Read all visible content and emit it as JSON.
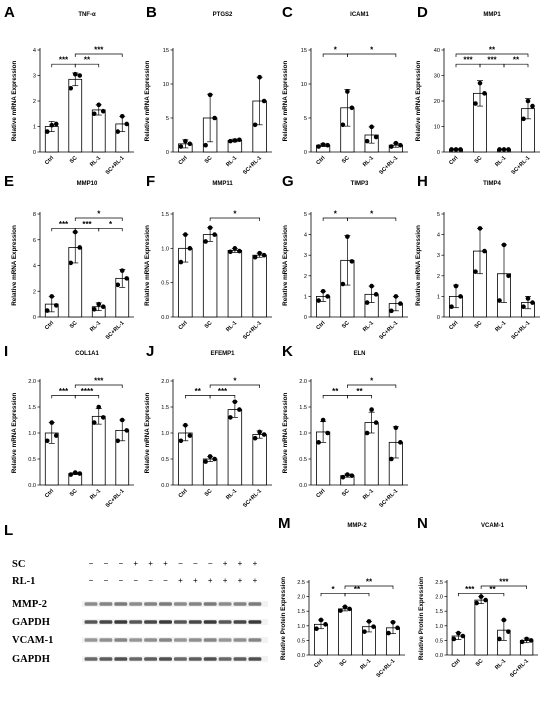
{
  "chart_data": [
    {
      "panel": "A",
      "type": "bar",
      "title": "TNF-α",
      "ylabel": "Relative mRNA Expression",
      "categories": [
        "Ctrl",
        "SC",
        "RL-1",
        "SC+RL-1"
      ],
      "values": [
        1.0,
        2.85,
        1.65,
        1.1
      ],
      "errors": [
        0.2,
        0.25,
        0.2,
        0.3
      ],
      "points": [
        [
          0.8,
          1.05,
          1.1
        ],
        [
          2.5,
          3.05,
          3.0
        ],
        [
          1.5,
          1.85,
          1.6
        ],
        [
          0.8,
          1.4,
          1.1
        ]
      ],
      "ylim": [
        0,
        4
      ],
      "yticks": [
        0,
        1,
        2,
        3,
        4
      ],
      "ytick_labels": [
        "0",
        "1",
        "2",
        "3",
        "4"
      ],
      "sig": [
        {
          "from": 0,
          "to": 1,
          "label": "***",
          "row": 0
        },
        {
          "from": 1,
          "to": 2,
          "label": "**",
          "row": 0
        },
        {
          "from": 1,
          "to": 3,
          "label": "***",
          "row": 1
        }
      ]
    },
    {
      "panel": "B",
      "type": "bar",
      "title": "PTGS2",
      "ylabel": "Relative mRNA Expression",
      "categories": [
        "Ctrl",
        "SC",
        "RL-1",
        "SC+RL-1"
      ],
      "values": [
        1.2,
        5.0,
        1.7,
        7.5
      ],
      "errors": [
        0.6,
        3.5,
        0.2,
        3.5
      ],
      "points": [
        [
          0.8,
          1.6,
          1.2
        ],
        [
          1.0,
          8.4,
          5.0
        ],
        [
          1.6,
          1.7,
          1.8
        ],
        [
          4.0,
          11.0,
          7.5
        ]
      ],
      "ylim": [
        0,
        15
      ],
      "yticks": [
        0,
        5,
        10,
        15
      ],
      "ytick_labels": [
        "0",
        "5",
        "10",
        "15"
      ],
      "sig": []
    },
    {
      "panel": "C",
      "type": "bar",
      "title": "ICAM1",
      "ylabel": "Relative mRNA Expression",
      "categories": [
        "Ctrl",
        "SC",
        "RL-1",
        "SC+RL-1"
      ],
      "values": [
        1.0,
        6.5,
        2.5,
        1.0
      ],
      "errors": [
        0.2,
        2.7,
        1.2,
        0.3
      ],
      "points": [
        [
          0.8,
          1.1,
          1.0
        ],
        [
          4.0,
          8.9,
          6.5
        ],
        [
          1.6,
          3.7,
          2.2
        ],
        [
          0.8,
          1.3,
          1.0
        ]
      ],
      "ylim": [
        0,
        15
      ],
      "yticks": [
        0,
        5,
        10,
        15
      ],
      "ytick_labels": [
        "0",
        "5",
        "10",
        "15"
      ],
      "sig": [
        {
          "from": 0,
          "to": 1,
          "label": "*",
          "row": 0
        },
        {
          "from": 1,
          "to": 3,
          "label": "*",
          "row": 0
        }
      ]
    },
    {
      "panel": "D",
      "type": "bar",
      "title": "MMP1",
      "ylabel": "Relative mRNA Expression",
      "categories": [
        "Ctrl",
        "SC",
        "RL-1",
        "SC+RL-1"
      ],
      "values": [
        1.0,
        23.0,
        1.0,
        17.0
      ],
      "errors": [
        0.3,
        5.0,
        0.2,
        4.0
      ],
      "points": [
        [
          1.0,
          1.0,
          1.0
        ],
        [
          19.0,
          27.0,
          23.0
        ],
        [
          1.0,
          1.0,
          1.0
        ],
        [
          13.0,
          20.0,
          18.0
        ]
      ],
      "ylim": [
        0,
        40
      ],
      "yticks": [
        0,
        10,
        20,
        30,
        40
      ],
      "ytick_labels": [
        "0",
        "10",
        "20",
        "30",
        "40"
      ],
      "sig": [
        {
          "from": 0,
          "to": 1,
          "label": "***",
          "row": 0
        },
        {
          "from": 1,
          "to": 2,
          "label": "***",
          "row": 0
        },
        {
          "from": 2,
          "to": 3,
          "label": "**",
          "row": 0
        },
        {
          "from": 0,
          "to": 3,
          "label": "**",
          "row": 1
        }
      ]
    },
    {
      "panel": "E",
      "type": "bar",
      "title": "MMP10",
      "ylabel": "Relative mRNA Expression",
      "categories": [
        "Ctrl",
        "SC",
        "RL-1",
        "SC+RL-1"
      ],
      "values": [
        1.0,
        5.4,
        0.8,
        3.0
      ],
      "errors": [
        0.6,
        1.2,
        0.3,
        0.7
      ],
      "points": [
        [
          0.5,
          1.6,
          0.9
        ],
        [
          4.2,
          6.6,
          5.4
        ],
        [
          0.6,
          1.0,
          0.8
        ],
        [
          2.5,
          3.6,
          3.0
        ]
      ],
      "ylim": [
        0,
        8
      ],
      "yticks": [
        0,
        2,
        4,
        6,
        8
      ],
      "ytick_labels": [
        "0",
        "2",
        "4",
        "6",
        "8"
      ],
      "sig": [
        {
          "from": 0,
          "to": 1,
          "label": "***",
          "row": 0
        },
        {
          "from": 1,
          "to": 2,
          "label": "***",
          "row": 0
        },
        {
          "from": 2,
          "to": 3,
          "label": "*",
          "row": 0
        },
        {
          "from": 1,
          "to": 3,
          "label": "*",
          "row": 1
        }
      ]
    },
    {
      "panel": "F",
      "type": "bar",
      "title": "MMP11",
      "ylabel": "Relative mRNA Expression",
      "categories": [
        "Ctrl",
        "SC",
        "RL-1",
        "SC+RL-1"
      ],
      "values": [
        1.0,
        1.2,
        0.97,
        0.9
      ],
      "errors": [
        0.2,
        0.1,
        0.03,
        0.03
      ],
      "points": [
        [
          0.8,
          1.2,
          1.0
        ],
        [
          1.1,
          1.3,
          1.2
        ],
        [
          0.95,
          1.0,
          0.96
        ],
        [
          0.87,
          0.93,
          0.9
        ]
      ],
      "ylim": [
        0,
        1.5
      ],
      "yticks": [
        0,
        0.5,
        1.0,
        1.5
      ],
      "ytick_labels": [
        "0.0",
        "0.5",
        "1.0",
        "1.5"
      ],
      "sig": [
        {
          "from": 1,
          "to": 3,
          "label": "*",
          "row": 0
        }
      ]
    },
    {
      "panel": "G",
      "type": "bar",
      "title": "TIMP3",
      "ylabel": "Relative mRNA Expression",
      "categories": [
        "Ctrl",
        "SC",
        "RL-1",
        "SC+RL-1"
      ],
      "values": [
        1.0,
        2.75,
        1.1,
        0.65
      ],
      "errors": [
        0.25,
        1.2,
        0.4,
        0.35
      ],
      "points": [
        [
          0.8,
          1.25,
          1.0
        ],
        [
          1.6,
          3.9,
          2.7
        ],
        [
          0.7,
          1.5,
          1.1
        ],
        [
          0.3,
          1.0,
          0.65
        ]
      ],
      "ylim": [
        0,
        5
      ],
      "yticks": [
        0,
        1,
        2,
        3,
        4,
        5
      ],
      "ytick_labels": [
        "0",
        "1",
        "2",
        "3",
        "4",
        "5"
      ],
      "sig": [
        {
          "from": 0,
          "to": 1,
          "label": "*",
          "row": 0
        },
        {
          "from": 1,
          "to": 3,
          "label": "*",
          "row": 0
        }
      ]
    },
    {
      "panel": "H",
      "type": "bar",
      "title": "TIMP4",
      "ylabel": "Relative mRNA Expression",
      "categories": [
        "Ctrl",
        "SC",
        "RL-1",
        "SC+RL-1"
      ],
      "values": [
        1.0,
        3.2,
        2.1,
        0.7
      ],
      "errors": [
        0.55,
        1.1,
        1.4,
        0.3
      ],
      "points": [
        [
          0.5,
          1.5,
          1.0
        ],
        [
          2.2,
          4.3,
          3.2
        ],
        [
          0.8,
          3.5,
          2.0
        ],
        [
          0.5,
          0.9,
          0.7
        ]
      ],
      "ylim": [
        0,
        5
      ],
      "yticks": [
        0,
        1,
        2,
        3,
        4,
        5
      ],
      "ytick_labels": [
        "0",
        "1",
        "2",
        "3",
        "4",
        "5"
      ],
      "sig": []
    },
    {
      "panel": "I",
      "type": "bar",
      "title": "COL1A1",
      "ylabel": "Relative mRNA Expression",
      "categories": [
        "Ctrl",
        "SC",
        "RL-1",
        "SC+RL-1"
      ],
      "values": [
        1.0,
        0.22,
        1.32,
        1.05
      ],
      "errors": [
        0.2,
        0.02,
        0.15,
        0.2
      ],
      "points": [
        [
          0.85,
          1.2,
          0.95
        ],
        [
          0.2,
          0.24,
          0.22
        ],
        [
          1.2,
          1.5,
          1.3
        ],
        [
          0.85,
          1.25,
          1.05
        ]
      ],
      "ylim": [
        0,
        2.0
      ],
      "yticks": [
        0,
        0.5,
        1.0,
        1.5,
        2.0
      ],
      "ytick_labels": [
        "0.0",
        "0.5",
        "1.0",
        "1.5",
        "2.0"
      ],
      "sig": [
        {
          "from": 0,
          "to": 1,
          "label": "***",
          "row": 0
        },
        {
          "from": 1,
          "to": 2,
          "label": "****",
          "row": 0
        },
        {
          "from": 1,
          "to": 3,
          "label": "***",
          "row": 1
        }
      ]
    },
    {
      "panel": "J",
      "type": "bar",
      "title": "EFEMP1",
      "ylabel": "Relative mRNA Expression",
      "categories": [
        "Ctrl",
        "SC",
        "RL-1",
        "SC+RL-1"
      ],
      "values": [
        1.0,
        0.5,
        1.45,
        0.97
      ],
      "errors": [
        0.15,
        0.05,
        0.15,
        0.07
      ],
      "points": [
        [
          0.85,
          1.15,
          0.95
        ],
        [
          0.45,
          0.55,
          0.5
        ],
        [
          1.3,
          1.6,
          1.45
        ],
        [
          0.9,
          1.02,
          0.97
        ]
      ],
      "ylim": [
        0,
        2.0
      ],
      "yticks": [
        0,
        0.5,
        1.0,
        1.5,
        2.0
      ],
      "ytick_labels": [
        "0.0",
        "0.5",
        "1.0",
        "1.5",
        "2.0"
      ],
      "sig": [
        {
          "from": 0,
          "to": 1,
          "label": "**",
          "row": 0
        },
        {
          "from": 1,
          "to": 2,
          "label": "***",
          "row": 0
        },
        {
          "from": 1,
          "to": 3,
          "label": "*",
          "row": 1
        }
      ]
    },
    {
      "panel": "K",
      "type": "bar",
      "title": "ELN",
      "ylabel": "Relative mRNA Expression",
      "categories": [
        "Ctrl",
        "SC",
        "RL-1",
        "SC+RL-1"
      ],
      "values": [
        1.02,
        0.18,
        1.2,
        0.82
      ],
      "errors": [
        0.2,
        0.03,
        0.2,
        0.3
      ],
      "points": [
        [
          0.82,
          1.25,
          1.0
        ],
        [
          0.15,
          0.2,
          0.18
        ],
        [
          1.0,
          1.45,
          1.2
        ],
        [
          0.5,
          1.1,
          0.82
        ]
      ],
      "ylim": [
        0,
        2.0
      ],
      "yticks": [
        0,
        0.5,
        1.0,
        1.5,
        2.0
      ],
      "ytick_labels": [
        "0.0",
        "0.5",
        "1.0",
        "1.5",
        "2.0"
      ],
      "sig": [
        {
          "from": 0,
          "to": 1,
          "label": "**",
          "row": 0
        },
        {
          "from": 1,
          "to": 2,
          "label": "**",
          "row": 0
        },
        {
          "from": 1,
          "to": 3,
          "label": "*",
          "row": 1
        }
      ]
    },
    {
      "panel": "M",
      "type": "bar",
      "title": "MMP-2",
      "ylabel": "Relative Protein Expression",
      "categories": [
        "Ctrl",
        "SC",
        "RL-1",
        "SC+RL-1"
      ],
      "values": [
        1.05,
        1.58,
        0.97,
        0.93
      ],
      "errors": [
        0.15,
        0.07,
        0.18,
        0.2
      ],
      "points": [
        [
          0.9,
          1.2,
          1.05
        ],
        [
          1.52,
          1.65,
          1.58
        ],
        [
          0.8,
          1.15,
          0.97
        ],
        [
          0.75,
          1.12,
          0.93
        ]
      ],
      "ylim": [
        0,
        2.5
      ],
      "yticks": [
        0,
        0.5,
        1.0,
        1.5,
        2.0,
        2.5
      ],
      "ytick_labels": [
        "0.0",
        "0.5",
        "1.0",
        "1.5",
        "2.0",
        "2.5"
      ],
      "sig": [
        {
          "from": 0,
          "to": 1,
          "label": "*",
          "row": 0
        },
        {
          "from": 1,
          "to": 2,
          "label": "**",
          "row": 0
        },
        {
          "from": 1,
          "to": 3,
          "label": "**",
          "row": 1
        }
      ]
    },
    {
      "panel": "N",
      "type": "bar",
      "title": "VCAM-1",
      "ylabel": "Relative Protein Expression",
      "categories": [
        "Ctrl",
        "SC",
        "RL-1",
        "SC+RL-1"
      ],
      "values": [
        0.65,
        1.88,
        0.85,
        0.5
      ],
      "errors": [
        0.12,
        0.12,
        0.35,
        0.08
      ],
      "points": [
        [
          0.55,
          0.75,
          0.65
        ],
        [
          1.78,
          2.0,
          1.88
        ],
        [
          0.55,
          1.2,
          0.8
        ],
        [
          0.45,
          0.55,
          0.5
        ]
      ],
      "ylim": [
        0,
        2.5
      ],
      "yticks": [
        0,
        0.5,
        1.0,
        1.5,
        2.0,
        2.5
      ],
      "ytick_labels": [
        "0.0",
        "0.5",
        "1.0",
        "1.5",
        "2.0",
        "2.5"
      ],
      "sig": [
        {
          "from": 0,
          "to": 1,
          "label": "***",
          "row": 0
        },
        {
          "from": 1,
          "to": 2,
          "label": "**",
          "row": 0
        },
        {
          "from": 1,
          "to": 3,
          "label": "***",
          "row": 1
        }
      ]
    }
  ],
  "blot": {
    "panel": "L",
    "treatments": [
      {
        "label": "SC",
        "signs": [
          "−",
          "−",
          "−",
          "+",
          "+",
          "+",
          "−",
          "−",
          "−",
          "+",
          "+",
          "+"
        ]
      },
      {
        "label": "RL-1",
        "signs": [
          "−",
          "−",
          "−",
          "−",
          "−",
          "−",
          "+",
          "+",
          "+",
          "+",
          "+",
          "+"
        ]
      }
    ],
    "bands": [
      "MMP-2",
      "GAPDH",
      "VCAM-1",
      "GAPDH"
    ]
  }
}
